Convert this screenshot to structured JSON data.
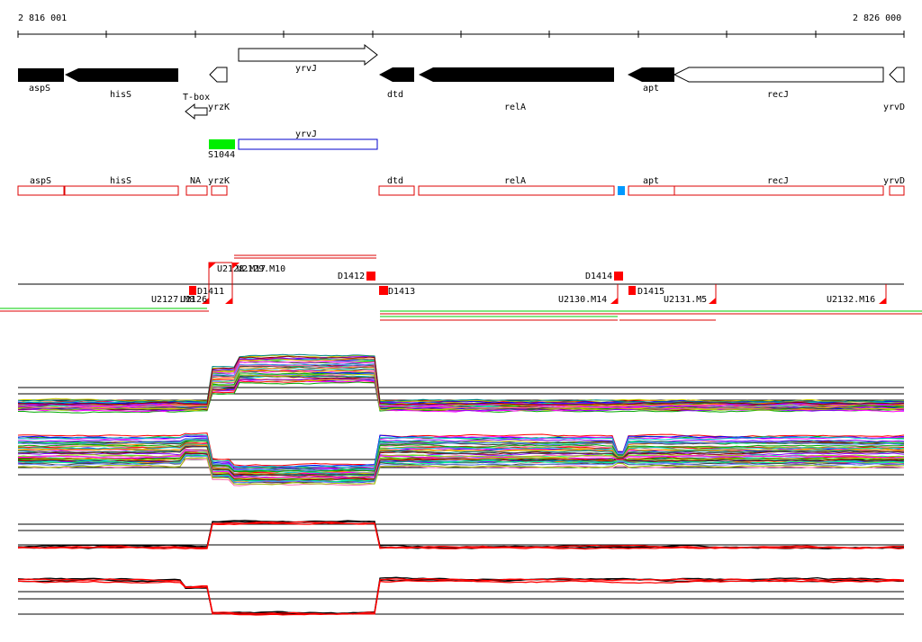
{
  "coords": {
    "start": "2 816 001",
    "end": "2 826 000"
  },
  "genes_annot": [
    {
      "label": "aspS",
      "strand": "-",
      "fill": "black"
    },
    {
      "label": "hisS",
      "strand": "-",
      "fill": "black"
    },
    {
      "label": "T-box",
      "strand": "-",
      "fill": "white"
    },
    {
      "label": "yrzK",
      "strand": "-",
      "fill": "white"
    },
    {
      "label": "yrvJ",
      "strand": "+",
      "fill": "white"
    },
    {
      "label": "dtd",
      "strand": "-",
      "fill": "black"
    },
    {
      "label": "relA",
      "strand": "-",
      "fill": "black"
    },
    {
      "label": "apt",
      "strand": "-",
      "fill": "black"
    },
    {
      "label": "recJ",
      "strand": "-",
      "fill": "white"
    },
    {
      "label": "yrvD",
      "strand": "-",
      "fill": "white"
    }
  ],
  "features": {
    "sRNA": {
      "label": "S1044",
      "color": "#00ee00"
    },
    "yrvJ_box": {
      "label": "yrvJ",
      "color": "#0000cc"
    }
  },
  "genes_boxes": [
    {
      "label": "aspS"
    },
    {
      "label": "hisS"
    },
    {
      "label": "NA"
    },
    {
      "label": "yrzK"
    },
    {
      "label": "dtd"
    },
    {
      "label": "relA"
    },
    {
      "label": "apt"
    },
    {
      "label": "recJ"
    },
    {
      "label": "yrvD"
    }
  ],
  "segments": [
    {
      "label": "U2128.M17"
    },
    {
      "label": "U2129.M10"
    },
    {
      "label": "D1412"
    },
    {
      "label": "D1414"
    },
    {
      "label": "U2127.M8"
    },
    {
      "label": "U2126"
    },
    {
      "label": "D1411"
    },
    {
      "label": "D1413"
    },
    {
      "label": "U2130.M14"
    },
    {
      "label": "D1415"
    },
    {
      "label": "U2131.M5"
    },
    {
      "label": "U2132.M16"
    }
  ],
  "colors": {
    "gene_box": "#dd0000",
    "marker": "#ff0000",
    "green": "#00cc00",
    "blue_marker": "#0099ff"
  }
}
